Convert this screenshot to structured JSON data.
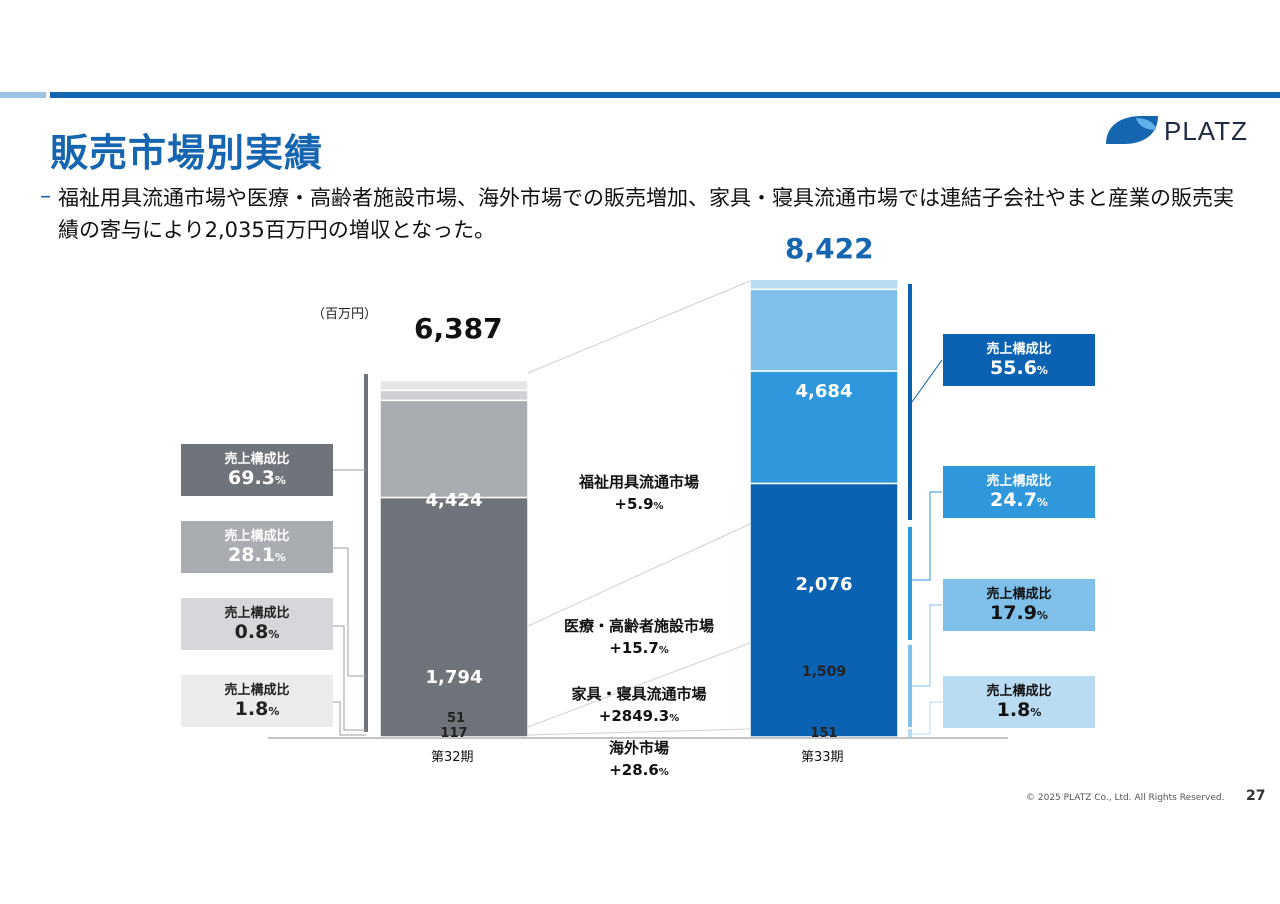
{
  "page": {
    "title": "販売市場別実績",
    "description": "福祉用具流通市場や医療・高齢者施設市場、海外市場での販売増加、家具・寝具流通市場では連結子会社やまと産業の販売実績の寄与により2,035百万円の増収となった。",
    "footer": "© 2025 PLATZ Co., Ltd. All Rights Reserved.",
    "page_number": "27",
    "logo_text": "PLATZ"
  },
  "chart_data": {
    "type": "bar",
    "stacked": true,
    "unit": "（百万円）",
    "categories": [
      "第32期",
      "第33期"
    ],
    "totals": [
      "6,387",
      "8,422"
    ],
    "series": [
      {
        "name": "福祉用具流通市場",
        "values": [
          4424,
          4684
        ],
        "labels": [
          "4,424",
          "4,684"
        ],
        "change": "+5.9",
        "share_label": "売上構成比",
        "shares": [
          "69.3",
          "55.6"
        ],
        "colors": [
          "#6f737a",
          "#0b62b3"
        ]
      },
      {
        "name": "医療・高齢者施設市場",
        "values": [
          1794,
          2076
        ],
        "labels": [
          "1,794",
          "2,076"
        ],
        "change": "+15.7",
        "share_label": "売上構成比",
        "shares": [
          "28.1",
          "24.7"
        ],
        "colors": [
          "#a9acb0",
          "#2f97dc"
        ]
      },
      {
        "name": "家具・寝具流通市場",
        "values": [
          51,
          1509
        ],
        "labels": [
          "51",
          "1,509"
        ],
        "change": "+2849.3",
        "share_label": "売上構成比",
        "shares": [
          "0.8",
          "17.9"
        ],
        "colors": [
          "#cfd1d4",
          "#7fc0ea"
        ]
      },
      {
        "name": "海外市場",
        "values": [
          117,
          151
        ],
        "labels": [
          "117",
          "151"
        ],
        "change": "+28.6",
        "share_label": "売上構成比",
        "shares": [
          "1.8",
          "1.8"
        ],
        "colors": [
          "#e6e7e9",
          "#b9dcf3"
        ]
      }
    ],
    "pct_sign": "%"
  }
}
